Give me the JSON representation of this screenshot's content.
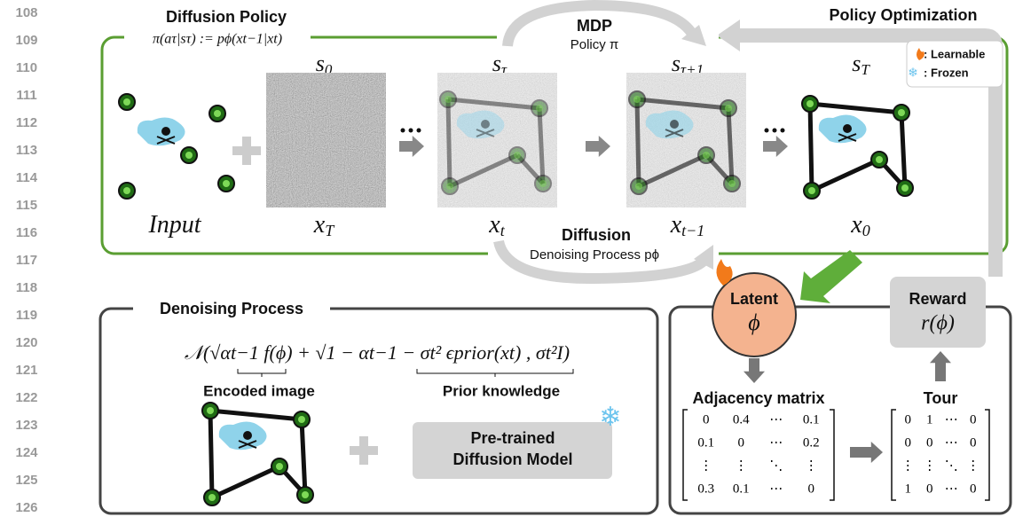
{
  "line_numbers": [
    "108",
    "109",
    "110",
    "111",
    "112",
    "113",
    "114",
    "115",
    "116",
    "117",
    "118",
    "119",
    "120",
    "121",
    "122",
    "123",
    "124",
    "125",
    "126"
  ],
  "top": {
    "title": "Diffusion Policy",
    "formula": "π(aτ|sτ) := pϕ(xt−1|xt)",
    "optimization": "Policy Optimization",
    "mdp": {
      "title": "MDP",
      "subtitle": "Policy π"
    },
    "legend": {
      "learnable": ": Learnable",
      "frozen": ": Frozen"
    },
    "states": [
      {
        "base": "s",
        "sub": "0"
      },
      {
        "base": "s",
        "sub": "τ"
      },
      {
        "base": "s",
        "sub": "τ+1"
      },
      {
        "base": "s",
        "sub": "T"
      }
    ],
    "stages": [
      {
        "base": "Input",
        "sub": ""
      },
      {
        "base": "x",
        "sub": "T"
      },
      {
        "base": "x",
        "sub": "t"
      },
      {
        "base": "x",
        "sub": "t−1"
      },
      {
        "base": "x",
        "sub": "0"
      }
    ],
    "diffusion": {
      "title": "Diffusion",
      "subtitle": "Denoising Process pϕ"
    }
  },
  "denoising": {
    "title": "Denoising Process",
    "formula": "𝒩(√αt−1 f(ϕ) + √1 − αt−1 − σt² ϵprior(xt) , σt²I)",
    "encoded": "Encoded image",
    "prior": "Prior knowledge",
    "model": [
      "Pre-trained",
      "Diffusion Model"
    ]
  },
  "optimization": {
    "latent": {
      "title": "Latent",
      "symbol": "ϕ"
    },
    "reward": {
      "title": "Reward",
      "symbol": "r(ϕ)"
    },
    "adjacency": {
      "title": "Adjacency matrix",
      "rows": [
        [
          "0",
          "0.4",
          "⋯",
          "0.1"
        ],
        [
          "0.1",
          "0",
          "⋯",
          "0.2"
        ],
        [
          "⋮",
          "⋮",
          "⋱",
          "⋮"
        ],
        [
          "0.3",
          "0.1",
          "⋯",
          "0"
        ]
      ]
    },
    "tour": {
      "title": "Tour",
      "rows": [
        [
          "0",
          "1",
          "⋯",
          "0"
        ],
        [
          "0",
          "0",
          "⋯",
          "0"
        ],
        [
          "⋮",
          "⋮",
          "⋱",
          "⋮"
        ],
        [
          "1",
          "0",
          "⋯",
          "0"
        ]
      ]
    }
  }
}
